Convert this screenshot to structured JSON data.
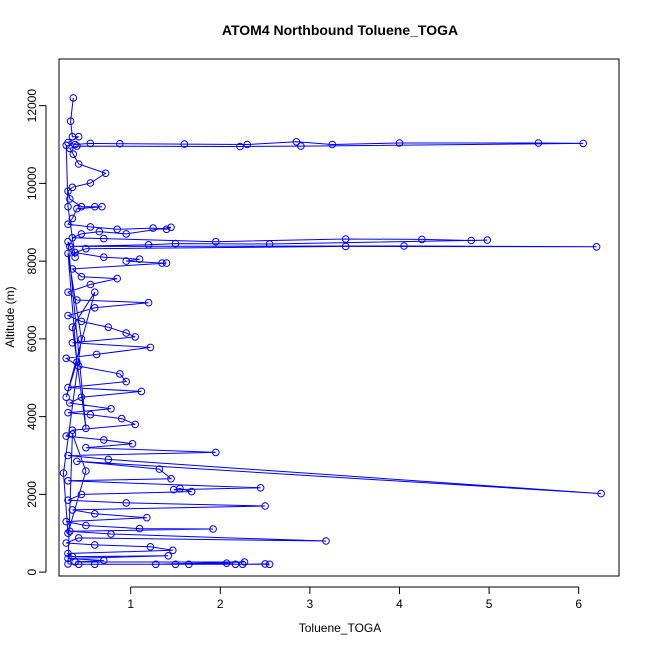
{
  "chart_data": {
    "type": "line",
    "title": "ATOM4 Northbound Toluene_TOGA",
    "xlabel": "Toluene_TOGA",
    "ylabel": "Altitude (m)",
    "xlim": [
      0.2,
      6.45
    ],
    "ylim": [
      -100,
      13200
    ],
    "xticks": [
      1,
      2,
      3,
      4,
      5,
      6
    ],
    "yticks": [
      0,
      2000,
      4000,
      6000,
      8000,
      10000,
      12000
    ],
    "series_color": "#0000ff",
    "marker": "open-circle",
    "series": [
      {
        "name": "Toluene_TOGA profile",
        "points": [
          [
            0.36,
            12200
          ],
          [
            0.33,
            11600
          ],
          [
            0.35,
            11200
          ],
          [
            0.42,
            11200
          ],
          [
            0.3,
            11050
          ],
          [
            0.38,
            11000
          ],
          [
            0.55,
            11030
          ],
          [
            0.88,
            11020
          ],
          [
            1.6,
            11010
          ],
          [
            2.3,
            11000
          ],
          [
            2.85,
            11070
          ],
          [
            3.25,
            11000
          ],
          [
            4.0,
            11040
          ],
          [
            5.55,
            11040
          ],
          [
            6.05,
            11030
          ],
          [
            2.9,
            10960
          ],
          [
            2.22,
            10950
          ],
          [
            0.4,
            10960
          ],
          [
            0.32,
            10900
          ],
          [
            0.36,
            10750
          ],
          [
            0.42,
            10500
          ],
          [
            0.72,
            10260
          ],
          [
            0.55,
            10010
          ],
          [
            0.35,
            9900
          ],
          [
            0.3,
            9800
          ],
          [
            0.32,
            9600
          ],
          [
            0.45,
            9400
          ],
          [
            0.6,
            9400
          ],
          [
            0.68,
            9400
          ],
          [
            0.4,
            9350
          ],
          [
            0.35,
            9100
          ],
          [
            0.3,
            8950
          ],
          [
            0.55,
            8880
          ],
          [
            0.85,
            8820
          ],
          [
            1.25,
            8850
          ],
          [
            1.4,
            8820
          ],
          [
            1.45,
            8870
          ],
          [
            0.95,
            8700
          ],
          [
            0.65,
            8760
          ],
          [
            0.45,
            8700
          ],
          [
            0.35,
            8600
          ],
          [
            0.7,
            8580
          ],
          [
            1.95,
            8500
          ],
          [
            3.4,
            8570
          ],
          [
            4.25,
            8560
          ],
          [
            4.8,
            8530
          ],
          [
            4.98,
            8540
          ],
          [
            2.55,
            8440
          ],
          [
            1.5,
            8450
          ],
          [
            1.2,
            8420
          ],
          [
            0.32,
            8380
          ],
          [
            4.05,
            8390
          ],
          [
            6.2,
            8370
          ],
          [
            3.4,
            8380
          ],
          [
            0.5,
            8320
          ],
          [
            0.38,
            8220
          ],
          [
            0.7,
            8100
          ],
          [
            1.1,
            8050
          ],
          [
            0.95,
            8000
          ],
          [
            1.35,
            7950
          ],
          [
            1.4,
            7950
          ],
          [
            0.35,
            7800
          ],
          [
            0.45,
            7600
          ],
          [
            0.85,
            7550
          ],
          [
            0.55,
            7400
          ],
          [
            0.3,
            7200
          ],
          [
            0.4,
            7000
          ],
          [
            1.2,
            6930
          ],
          [
            0.6,
            6800
          ],
          [
            0.3,
            6600
          ],
          [
            0.45,
            6450
          ],
          [
            0.75,
            6300
          ],
          [
            0.95,
            6150
          ],
          [
            1.05,
            6050
          ],
          [
            0.35,
            5900
          ],
          [
            1.22,
            5780
          ],
          [
            0.62,
            5600
          ],
          [
            0.28,
            5500
          ],
          [
            0.42,
            5300
          ],
          [
            0.88,
            5100
          ],
          [
            0.95,
            4900
          ],
          [
            0.3,
            4750
          ],
          [
            1.12,
            4650
          ],
          [
            0.45,
            4500
          ],
          [
            0.32,
            4350
          ],
          [
            0.78,
            4200
          ],
          [
            0.3,
            4100
          ],
          [
            0.55,
            4050
          ],
          [
            0.9,
            3950
          ],
          [
            1.05,
            3800
          ],
          [
            0.35,
            3650
          ],
          [
            0.28,
            3500
          ],
          [
            0.7,
            3400
          ],
          [
            1.02,
            3300
          ],
          [
            0.5,
            3200
          ],
          [
            1.95,
            3080
          ],
          [
            0.3,
            3000
          ],
          [
            0.75,
            2900
          ],
          [
            6.25,
            2020
          ],
          [
            0.4,
            2850
          ],
          [
            1.32,
            2650
          ],
          [
            1.45,
            2400
          ],
          [
            0.3,
            2350
          ],
          [
            2.45,
            2170
          ],
          [
            1.48,
            2120
          ],
          [
            1.55,
            2150
          ],
          [
            1.68,
            2070
          ],
          [
            0.45,
            2000
          ],
          [
            0.3,
            1850
          ],
          [
            0.95,
            1780
          ],
          [
            2.5,
            1700
          ],
          [
            0.35,
            1600
          ],
          [
            0.6,
            1500
          ],
          [
            1.18,
            1400
          ],
          [
            0.28,
            1300
          ],
          [
            0.5,
            1200
          ],
          [
            1.1,
            1120
          ],
          [
            1.92,
            1110
          ],
          [
            0.32,
            1050
          ],
          [
            0.78,
            980
          ],
          [
            3.18,
            800
          ],
          [
            0.42,
            880
          ],
          [
            0.28,
            750
          ],
          [
            0.6,
            700
          ],
          [
            1.22,
            650
          ],
          [
            1.47,
            560
          ],
          [
            0.3,
            480
          ],
          [
            0.35,
            400
          ],
          [
            1.42,
            420
          ],
          [
            0.3,
            350
          ],
          [
            0.7,
            300
          ],
          [
            0.38,
            260
          ],
          [
            2.27,
            260
          ],
          [
            1.28,
            200
          ],
          [
            1.5,
            200
          ],
          [
            1.65,
            200
          ],
          [
            2.07,
            230
          ],
          [
            2.17,
            200
          ],
          [
            2.25,
            200
          ],
          [
            2.5,
            210
          ],
          [
            2.55,
            200
          ],
          [
            0.6,
            200
          ],
          [
            0.42,
            200
          ],
          [
            0.3,
            210
          ],
          [
            0.35,
            3550
          ],
          [
            0.5,
            2600
          ],
          [
            0.3,
            1000
          ],
          [
            0.25,
            2550
          ],
          [
            0.45,
            6000
          ],
          [
            0.3,
            8200
          ],
          [
            0.4,
            5400
          ],
          [
            0.28,
            4500
          ],
          [
            0.6,
            7200
          ],
          [
            0.35,
            6300
          ],
          [
            0.5,
            3700
          ],
          [
            0.3,
            8500
          ],
          [
            0.38,
            8100
          ],
          [
            0.3,
            9400
          ],
          [
            0.28,
            10980
          ]
        ]
      }
    ]
  }
}
